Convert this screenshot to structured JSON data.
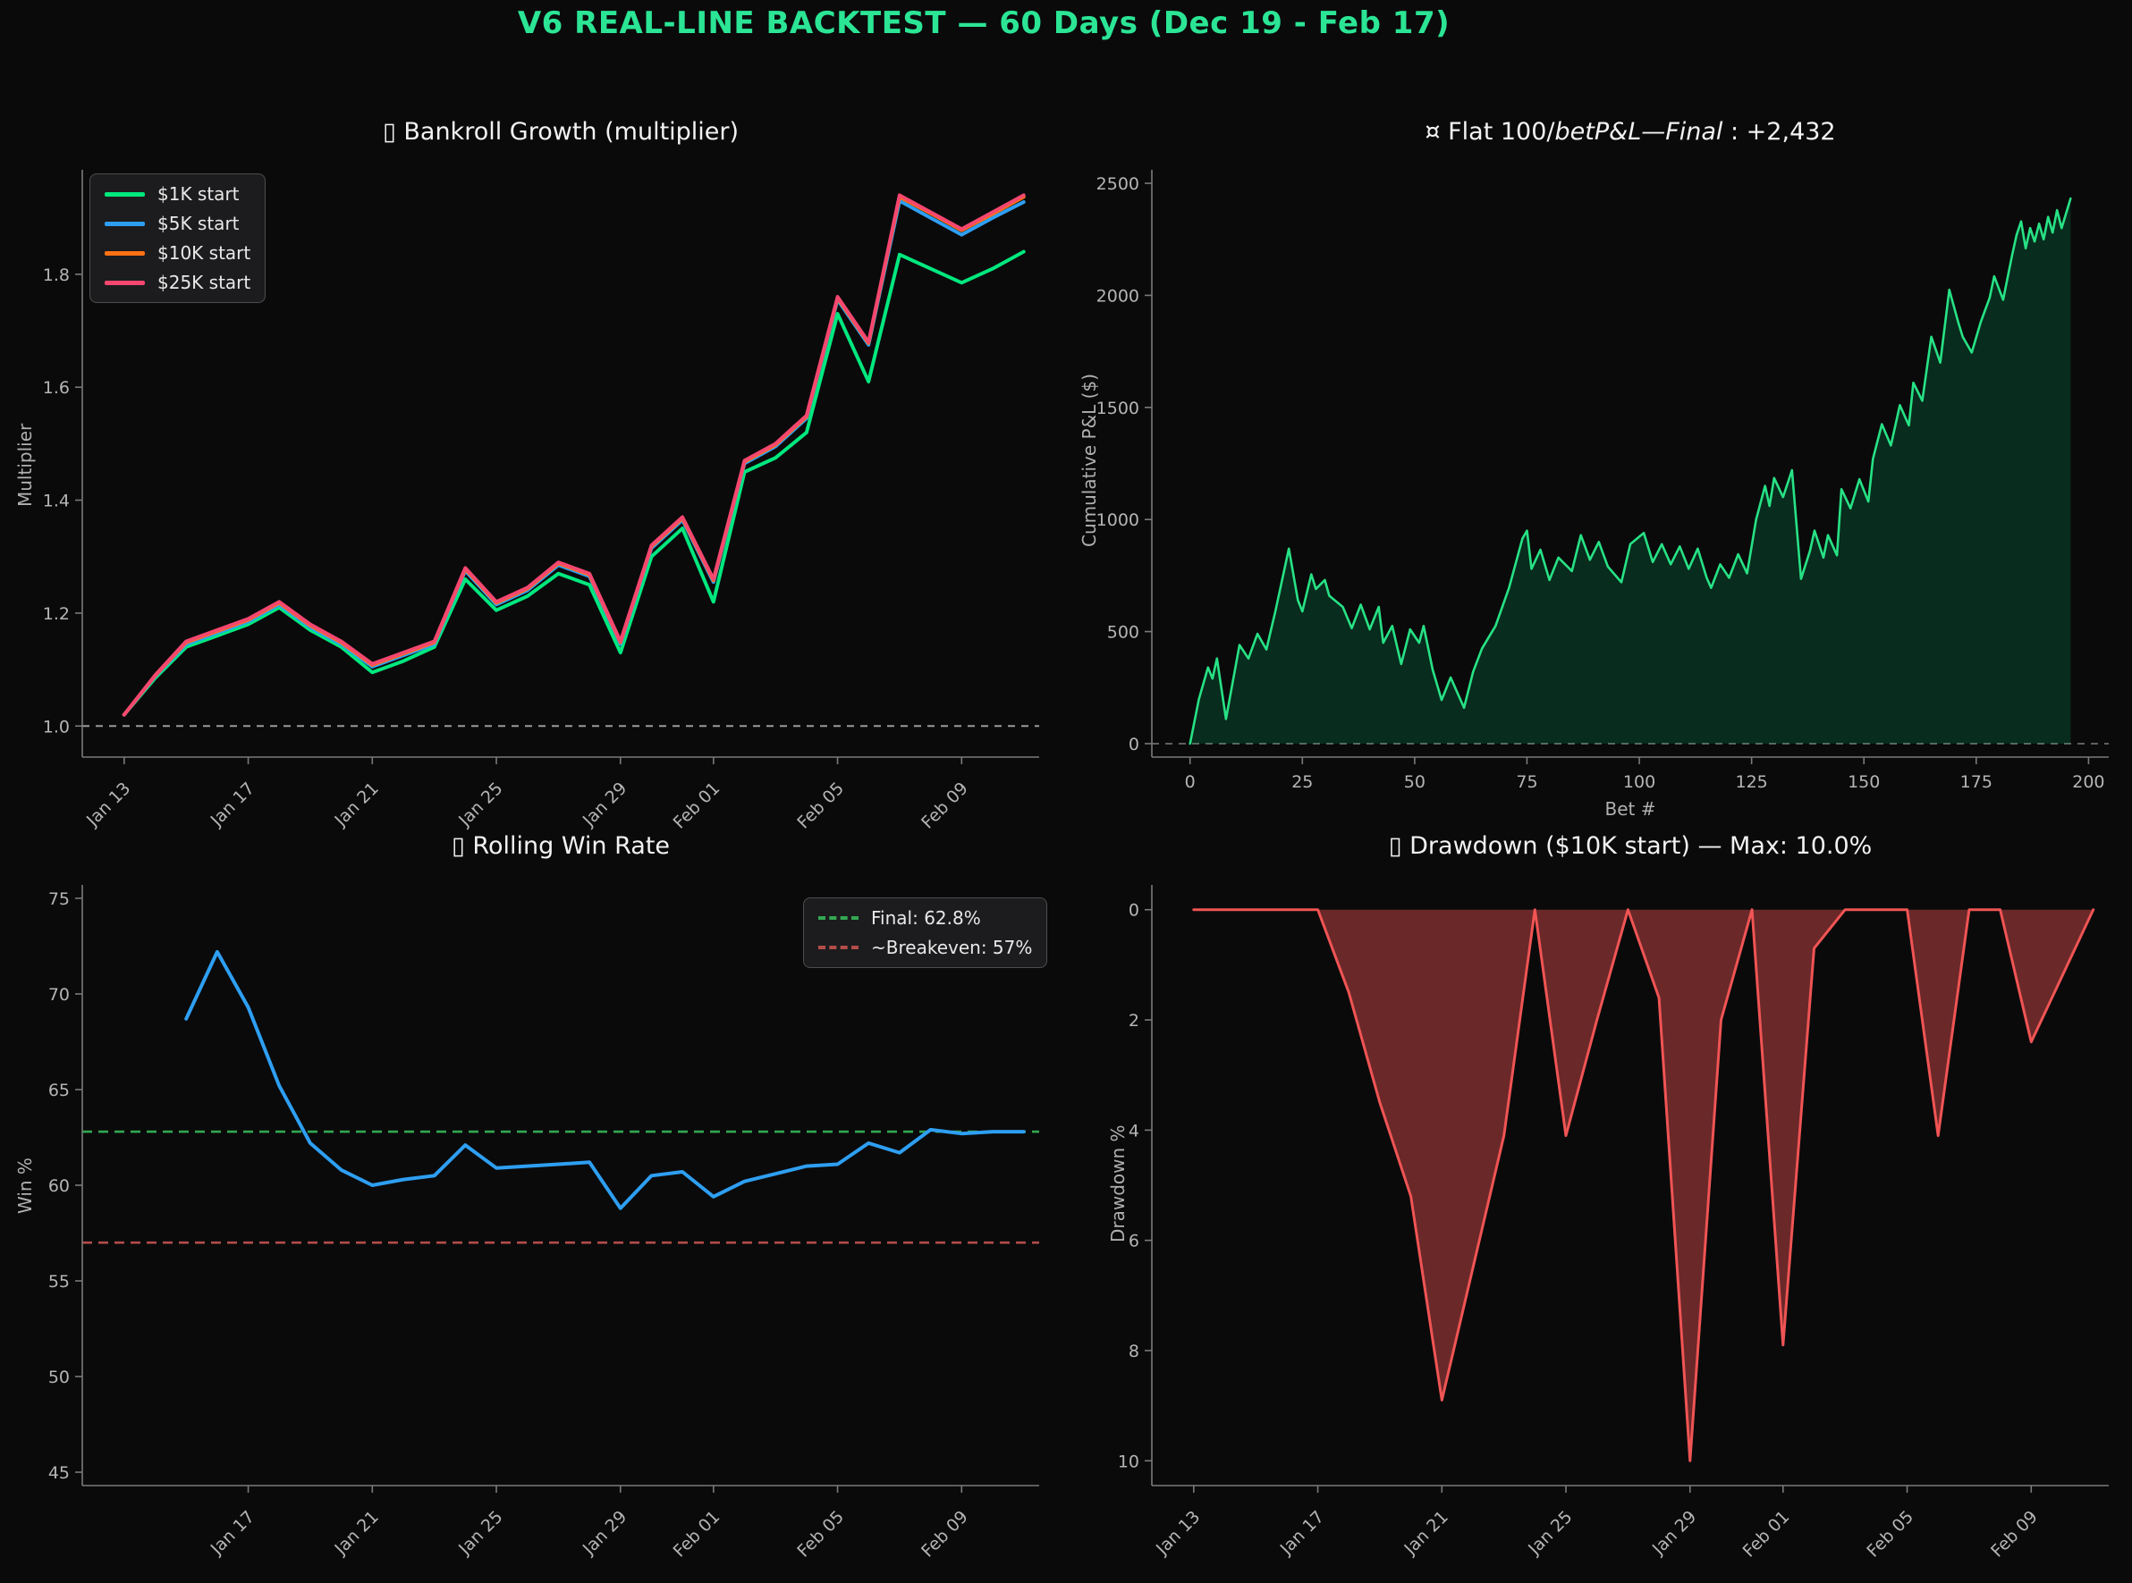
{
  "page": {
    "title": "V6 REAL-LINE BACKTEST — 60 Days (Dec 19 - Feb 17)",
    "title_color": "#2be595",
    "background": "#0a0a0b",
    "tick_color": "#b5b5b5",
    "spine_color": "#7a7a7a"
  },
  "chart_data": [
    {
      "id": "bankroll",
      "type": "line",
      "title": "▯ Bankroll Growth (multiplier)",
      "ylabel": "Multiplier",
      "xlabel": "",
      "x_unit": "days since Jan 13",
      "xlim": [
        -1.35,
        29.5
      ],
      "ylim": [
        0.945,
        1.985
      ],
      "rotate_x": true,
      "x_tick_pos": [
        0,
        4,
        8,
        12,
        16,
        19,
        23,
        27
      ],
      "x_tick_labels": [
        "Jan 13",
        "Jan 17",
        "Jan 21",
        "Jan 25",
        "Jan 29",
        "Feb 01",
        "Feb 05",
        "Feb 09"
      ],
      "y_ticks": [
        1.0,
        1.2,
        1.4,
        1.6,
        1.8
      ],
      "y_tick_labels": [
        "1.0",
        "1.2",
        "1.4",
        "1.6",
        "1.8"
      ],
      "ref_lines": [
        {
          "y": 1.0,
          "color": "#9a9a9a",
          "dash": "8 7",
          "width": 2
        }
      ],
      "x": [
        0,
        1,
        2,
        3,
        4,
        5,
        6,
        7,
        8,
        9,
        10,
        11,
        12,
        13,
        14,
        15,
        16,
        17,
        18,
        19,
        20,
        21,
        22,
        23,
        24,
        25,
        26,
        27,
        28,
        29
      ],
      "series": [
        {
          "name": "$1K start",
          "color": "#00e87e",
          "width": 4,
          "values": [
            1.02,
            1.085,
            1.14,
            1.16,
            1.18,
            1.21,
            1.17,
            1.14,
            1.095,
            1.115,
            1.14,
            1.26,
            1.205,
            1.23,
            1.27,
            1.25,
            1.13,
            1.3,
            1.35,
            1.22,
            1.45,
            1.475,
            1.52,
            1.73,
            1.61,
            1.835,
            1.81,
            1.785,
            1.81,
            1.84
          ]
        },
        {
          "name": "$5K start",
          "color": "#2e9ff2",
          "width": 4,
          "values": [
            1.02,
            1.088,
            1.145,
            1.165,
            1.185,
            1.215,
            1.175,
            1.145,
            1.105,
            1.125,
            1.145,
            1.275,
            1.215,
            1.24,
            1.285,
            1.265,
            1.145,
            1.315,
            1.365,
            1.255,
            1.465,
            1.495,
            1.545,
            1.755,
            1.675,
            1.93,
            1.9,
            1.87,
            1.9,
            1.928
          ]
        },
        {
          "name": "$10K start",
          "color": "#ff7215",
          "width": 4,
          "values": [
            1.02,
            1.089,
            1.148,
            1.168,
            1.188,
            1.218,
            1.178,
            1.148,
            1.108,
            1.128,
            1.148,
            1.278,
            1.218,
            1.243,
            1.288,
            1.268,
            1.148,
            1.318,
            1.368,
            1.258,
            1.468,
            1.498,
            1.548,
            1.758,
            1.678,
            1.937,
            1.908,
            1.878,
            1.907,
            1.937
          ]
        },
        {
          "name": "$25K start",
          "color": "#f5476f",
          "width": 4,
          "values": [
            1.02,
            1.09,
            1.15,
            1.17,
            1.19,
            1.22,
            1.18,
            1.15,
            1.11,
            1.13,
            1.15,
            1.28,
            1.22,
            1.245,
            1.29,
            1.27,
            1.15,
            1.32,
            1.37,
            1.26,
            1.47,
            1.5,
            1.55,
            1.76,
            1.68,
            1.94,
            1.91,
            1.88,
            1.91,
            1.94
          ]
        }
      ],
      "legend": {
        "position": "top-left",
        "entries": [
          {
            "label": "$1K start",
            "color": "#00e87e",
            "dash": false
          },
          {
            "label": "$5K start",
            "color": "#2e9ff2",
            "dash": false
          },
          {
            "label": "$10K start",
            "color": "#ff7215",
            "dash": false
          },
          {
            "label": "$25K start",
            "color": "#f5476f",
            "dash": false
          }
        ]
      }
    },
    {
      "id": "pnl",
      "type": "area",
      "title_prefix": "¤ Flat 100/",
      "title_italic": "betP&L—Final",
      "title_suffix": " : +2,432",
      "final_pnl": 2432,
      "xlabel": "Bet #",
      "ylabel": "Cumulative P&L ($)",
      "xlim": [
        -8.5,
        204.5
      ],
      "ylim": [
        -60,
        2560
      ],
      "rotate_x": false,
      "x_tick_pos": [
        0,
        25,
        50,
        75,
        100,
        125,
        150,
        175,
        200
      ],
      "x_tick_labels": [
        "0",
        "25",
        "50",
        "75",
        "100",
        "125",
        "150",
        "175",
        "200"
      ],
      "y_ticks": [
        0,
        500,
        1000,
        1500,
        2000,
        2500
      ],
      "y_tick_labels": [
        "0",
        "500",
        "1000",
        "1500",
        "2000",
        "2500"
      ],
      "ref_lines": [
        {
          "y": 0,
          "color": "#5f5f5f",
          "dash": "8 7",
          "width": 2
        }
      ],
      "x": [
        0,
        2,
        4,
        5,
        6,
        8,
        11,
        13,
        15,
        17,
        19,
        22,
        24,
        25,
        27,
        28,
        30,
        31,
        34,
        36,
        38,
        40,
        42,
        43,
        45,
        47,
        49,
        51,
        52,
        54,
        56,
        58,
        61,
        63,
        65,
        68,
        71,
        74,
        75,
        76,
        78,
        80,
        82,
        85,
        87,
        89,
        91,
        93,
        96,
        98,
        101,
        103,
        105,
        107,
        109,
        111,
        113,
        115,
        116,
        118,
        120,
        122,
        124,
        126,
        128,
        129,
        130,
        132,
        134,
        136,
        138,
        139,
        141,
        142,
        144,
        145,
        147,
        149,
        151,
        152,
        154,
        156,
        158,
        160,
        161,
        163,
        165,
        167,
        169,
        171,
        172,
        174,
        176,
        178,
        179,
        181,
        183,
        184,
        185,
        186,
        187,
        188,
        189,
        190,
        191,
        192,
        193,
        194,
        196
      ],
      "series": [
        {
          "name": "cumulative_pnl",
          "color": "#27e285",
          "width": 2.6,
          "fill": "rgba(0,226,125,0.16)",
          "baseline": 0,
          "values": [
            0,
            200,
            340,
            290,
            380,
            110,
            440,
            380,
            490,
            420,
            590,
            870,
            640,
            590,
            755,
            690,
            730,
            660,
            610,
            515,
            620,
            510,
            610,
            450,
            525,
            355,
            510,
            450,
            525,
            330,
            195,
            295,
            160,
            320,
            425,
            525,
            695,
            915,
            950,
            780,
            865,
            730,
            830,
            770,
            930,
            820,
            900,
            790,
            720,
            890,
            940,
            810,
            890,
            800,
            880,
            780,
            870,
            740,
            695,
            800,
            740,
            845,
            760,
            1000,
            1150,
            1060,
            1185,
            1100,
            1220,
            735,
            860,
            950,
            830,
            930,
            840,
            1135,
            1050,
            1180,
            1080,
            1270,
            1425,
            1330,
            1510,
            1420,
            1610,
            1530,
            1815,
            1700,
            2025,
            1880,
            1815,
            1745,
            1880,
            1990,
            2085,
            1980,
            2180,
            2270,
            2330,
            2210,
            2300,
            2240,
            2320,
            2250,
            2350,
            2280,
            2380,
            2300,
            2432
          ]
        }
      ]
    },
    {
      "id": "winrate",
      "type": "line",
      "title": "▯ Rolling Win Rate",
      "ylabel": "Win %",
      "xlabel": "",
      "final_pct": 62.8,
      "breakeven_pct": 57,
      "xlim": [
        -1.35,
        29.5
      ],
      "ylim": [
        44.3,
        75.7
      ],
      "rotate_x": true,
      "x_tick_pos": [
        4,
        8,
        12,
        16,
        19,
        23,
        27
      ],
      "x_tick_labels": [
        "Jan 17",
        "Jan 21",
        "Jan 25",
        "Jan 29",
        "Feb 01",
        "Feb 05",
        "Feb 09"
      ],
      "y_ticks": [
        45,
        50,
        55,
        60,
        65,
        70,
        75
      ],
      "y_tick_labels": [
        "45",
        "50",
        "55",
        "60",
        "65",
        "70",
        "75"
      ],
      "ref_lines": [
        {
          "y": 62.8,
          "color": "#33a852",
          "dash": "11 7",
          "width": 2.6,
          "label": "Final: 62.8%"
        },
        {
          "y": 57,
          "color": "#b34d4a",
          "dash": "11 7",
          "width": 2.6,
          "label": "~Breakeven: 57%"
        }
      ],
      "x": [
        2,
        3,
        4,
        5,
        6,
        7,
        8,
        9,
        10,
        11,
        12,
        13,
        14,
        15,
        16,
        17,
        18,
        19,
        20,
        21,
        22,
        23,
        24,
        25,
        26,
        27,
        28,
        29
      ],
      "series": [
        {
          "name": "rolling_win_rate",
          "color": "#2e9ff2",
          "width": 4,
          "values": [
            68.7,
            72.2,
            69.3,
            65.2,
            62.2,
            60.8,
            60.0,
            60.3,
            60.5,
            62.1,
            60.9,
            61.0,
            61.1,
            61.2,
            58.8,
            60.5,
            60.7,
            59.4,
            60.2,
            60.6,
            61.0,
            61.1,
            62.2,
            61.7,
            62.9,
            62.7,
            62.8,
            62.8
          ]
        }
      ],
      "legend": {
        "position": "top-right",
        "entries": [
          {
            "label": "Final: 62.8%",
            "color": "#33a852",
            "dash": true
          },
          {
            "label": "~Breakeven: 57%",
            "color": "#b34d4a",
            "dash": true
          }
        ]
      }
    },
    {
      "id": "drawdown",
      "type": "area",
      "title": "▯ Drawdown ($10K start) — Max: 10.0%",
      "ylabel": "Drawdown %",
      "xlabel": "",
      "max_drawdown_pct": 10.0,
      "xlim": [
        -1.35,
        29.5
      ],
      "ylim": [
        10.45,
        -0.45
      ],
      "y_inverted": true,
      "rotate_x": true,
      "x_tick_pos": [
        0,
        4,
        8,
        12,
        16,
        19,
        23,
        27
      ],
      "x_tick_labels": [
        "Jan 13",
        "Jan 17",
        "Jan 21",
        "Jan 25",
        "Jan 29",
        "Feb 01",
        "Feb 05",
        "Feb 09"
      ],
      "y_ticks": [
        0,
        2,
        4,
        6,
        8,
        10
      ],
      "y_tick_labels": [
        "0",
        "2",
        "4",
        "6",
        "8",
        "10"
      ],
      "ref_lines": [],
      "x": [
        0,
        1,
        2,
        3,
        4,
        5,
        6,
        7,
        8,
        9,
        10,
        11,
        12,
        13,
        14,
        15,
        16,
        17,
        18,
        19,
        20,
        21,
        22,
        23,
        24,
        25,
        26,
        27,
        28,
        29
      ],
      "series": [
        {
          "name": "drawdown_pct",
          "color": "#f05454",
          "width": 3,
          "fill": "rgba(240,84,84,0.42)",
          "baseline": 0,
          "values": [
            0,
            0,
            0,
            0,
            0,
            1.5,
            3.5,
            5.2,
            8.9,
            6.5,
            4.1,
            0,
            4.1,
            2.0,
            0,
            1.6,
            10.0,
            2.0,
            0,
            7.9,
            0.7,
            0,
            0,
            0,
            4.1,
            0,
            0,
            2.4,
            1.2,
            0
          ]
        }
      ]
    }
  ]
}
